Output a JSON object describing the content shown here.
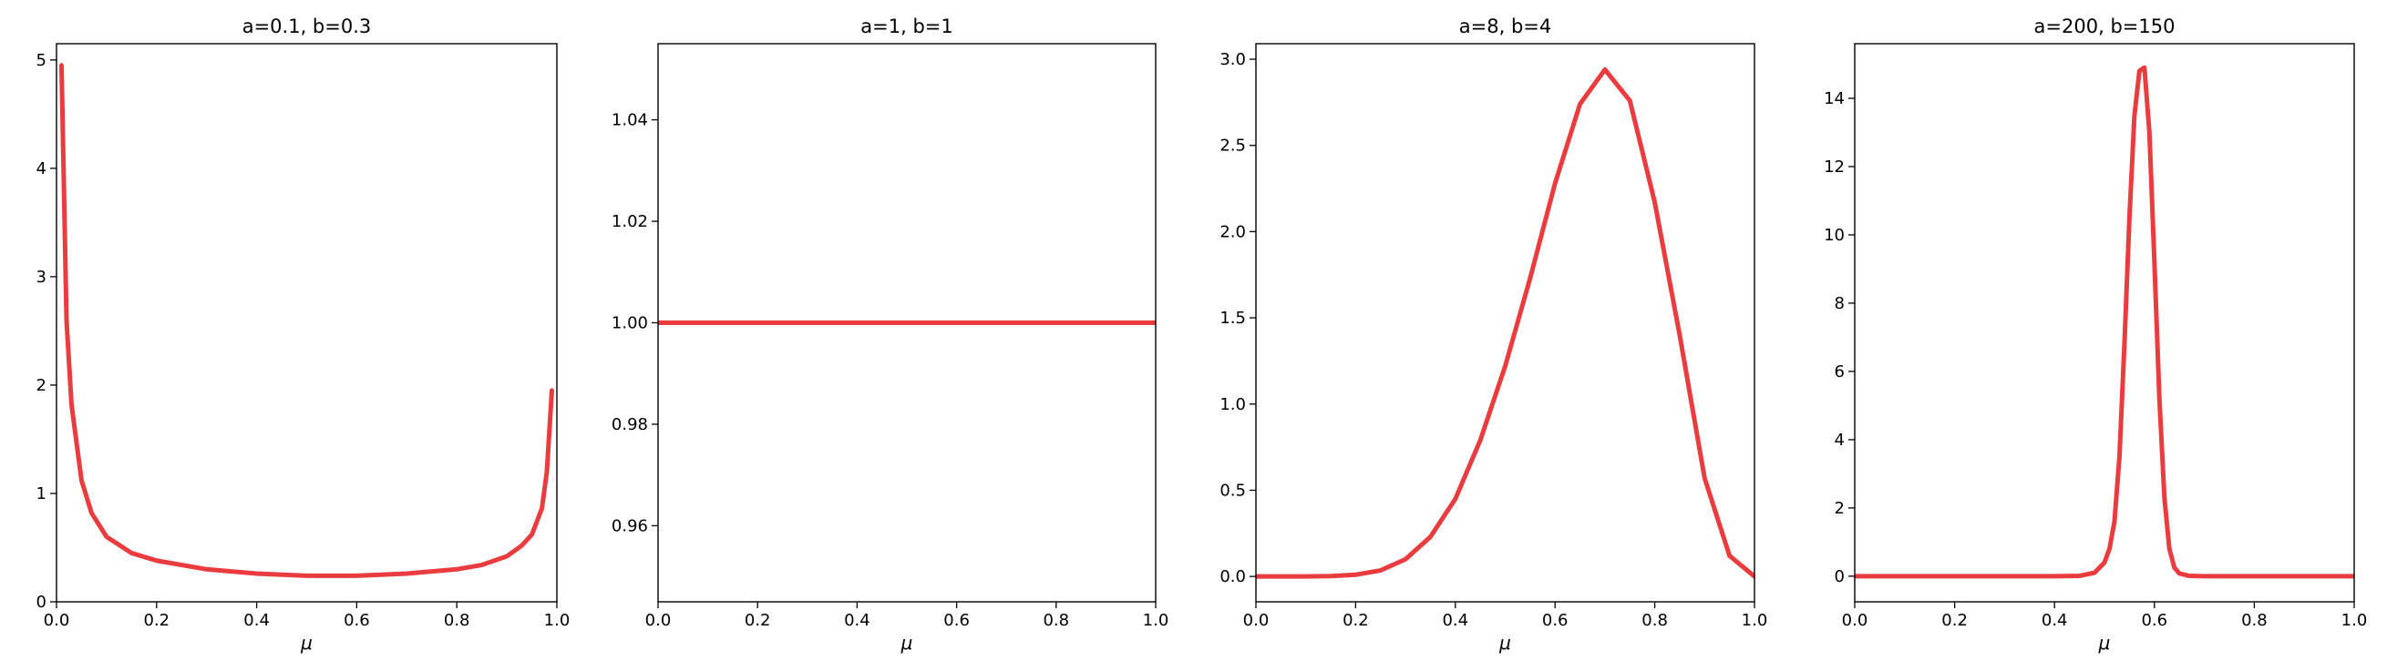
{
  "figure": {
    "background": "#ffffff"
  },
  "chart_data": [
    {
      "type": "line",
      "title": "a=0.1, b=0.3",
      "xlabel": "μ",
      "ylabel": "",
      "xlim": [
        0,
        1
      ],
      "ylim": [
        0,
        5.15
      ],
      "xticks": [
        "0.0",
        "0.2",
        "0.4",
        "0.6",
        "0.8",
        "1.0"
      ],
      "yticks": [
        "0",
        "1",
        "2",
        "3",
        "4",
        "5"
      ],
      "grid": false,
      "line_color": "#e8262a",
      "series": [
        {
          "x": [
            0.01,
            0.02,
            0.03,
            0.05,
            0.07,
            0.1,
            0.15,
            0.2,
            0.3,
            0.4,
            0.5,
            0.6,
            0.7,
            0.8,
            0.85,
            0.9,
            0.93,
            0.95,
            0.97,
            0.98,
            0.99
          ],
          "y": [
            4.95,
            2.6,
            1.82,
            1.12,
            0.82,
            0.6,
            0.45,
            0.38,
            0.3,
            0.26,
            0.24,
            0.24,
            0.26,
            0.3,
            0.34,
            0.42,
            0.52,
            0.62,
            0.86,
            1.2,
            1.95
          ]
        }
      ]
    },
    {
      "type": "line",
      "title": "a=1, b=1",
      "xlabel": "μ",
      "ylabel": "",
      "xlim": [
        0,
        1
      ],
      "ylim": [
        0.945,
        1.055
      ],
      "xticks": [
        "0.0",
        "0.2",
        "0.4",
        "0.6",
        "0.8",
        "1.0"
      ],
      "yticks": [
        "0.96",
        "0.98",
        "1.00",
        "1.02",
        "1.04"
      ],
      "grid": false,
      "line_color": "#e8262a",
      "series": [
        {
          "x": [
            0.0,
            1.0
          ],
          "y": [
            1.0,
            1.0
          ]
        }
      ]
    },
    {
      "type": "line",
      "title": "a=8, b=4",
      "xlabel": "μ",
      "ylabel": "",
      "xlim": [
        0,
        1
      ],
      "ylim": [
        -0.147,
        3.09
      ],
      "xticks": [
        "0.0",
        "0.2",
        "0.4",
        "0.6",
        "0.8",
        "1.0"
      ],
      "yticks": [
        "0.0",
        "0.5",
        "1.0",
        "1.5",
        "2.0",
        "2.5",
        "3.0"
      ],
      "grid": false,
      "line_color": "#e8262a",
      "series": [
        {
          "x": [
            0.0,
            0.05,
            0.1,
            0.15,
            0.2,
            0.25,
            0.3,
            0.35,
            0.4,
            0.45,
            0.5,
            0.55,
            0.6,
            0.65,
            0.7,
            0.75,
            0.8,
            0.85,
            0.9,
            0.95,
            1.0
          ],
          "y": [
            0.0,
            0.0,
            0.0,
            0.002,
            0.01,
            0.035,
            0.1,
            0.23,
            0.45,
            0.79,
            1.22,
            1.73,
            2.28,
            2.74,
            2.94,
            2.76,
            2.17,
            1.4,
            0.57,
            0.12,
            0.0
          ]
        }
      ]
    },
    {
      "type": "line",
      "title": "a=200, b=150",
      "xlabel": "μ",
      "ylabel": "",
      "xlim": [
        0,
        1
      ],
      "ylim": [
        -0.75,
        15.6
      ],
      "xticks": [
        "0.0",
        "0.2",
        "0.4",
        "0.6",
        "0.8",
        "1.0"
      ],
      "yticks": [
        "0",
        "2",
        "4",
        "6",
        "8",
        "10",
        "12",
        "14"
      ],
      "grid": false,
      "line_color": "#e8262a",
      "series": [
        {
          "x": [
            0.0,
            0.4,
            0.45,
            0.48,
            0.5,
            0.51,
            0.52,
            0.53,
            0.54,
            0.55,
            0.56,
            0.57,
            0.58,
            0.59,
            0.6,
            0.61,
            0.62,
            0.63,
            0.64,
            0.65,
            0.67,
            0.7,
            1.0
          ],
          "y": [
            0.0,
            0.0,
            0.01,
            0.1,
            0.4,
            0.8,
            1.6,
            3.5,
            6.8,
            10.5,
            13.5,
            14.8,
            14.9,
            13.0,
            9.2,
            5.2,
            2.3,
            0.8,
            0.25,
            0.08,
            0.01,
            0.0,
            0.0
          ]
        }
      ]
    }
  ]
}
